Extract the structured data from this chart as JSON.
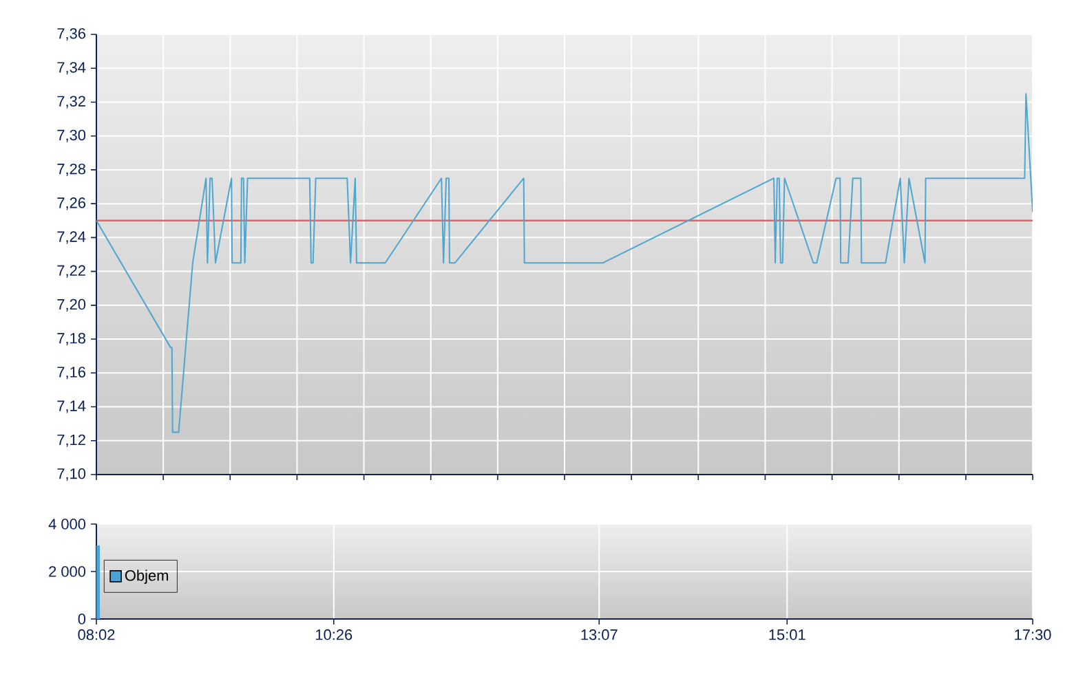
{
  "chart_data": [
    {
      "type": "line",
      "xlim": [
        8.0333,
        17.5
      ],
      "xticks": [
        {
          "value": 8.0333,
          "label": null
        },
        {
          "value": 8.7095,
          "label": null
        },
        {
          "value": 9.3857,
          "label": null
        },
        {
          "value": 10.0619,
          "label": null
        },
        {
          "value": 10.7381,
          "label": null
        },
        {
          "value": 11.4143,
          "label": null
        },
        {
          "value": 12.0905,
          "label": null
        },
        {
          "value": 12.7667,
          "label": null
        },
        {
          "value": 13.4429,
          "label": null
        },
        {
          "value": 14.119,
          "label": null
        },
        {
          "value": 14.7952,
          "label": null
        },
        {
          "value": 15.4714,
          "label": null
        },
        {
          "value": 16.1476,
          "label": null
        },
        {
          "value": 16.8238,
          "label": null
        },
        {
          "value": 17.5,
          "label": null
        }
      ],
      "ylim": [
        7.1,
        7.36
      ],
      "yticks": [
        {
          "value": 7.1,
          "label": "7,10"
        },
        {
          "value": 7.12,
          "label": "7,12"
        },
        {
          "value": 7.14,
          "label": "7,14"
        },
        {
          "value": 7.16,
          "label": "7,16"
        },
        {
          "value": 7.18,
          "label": "7,18"
        },
        {
          "value": 7.2,
          "label": "7,20"
        },
        {
          "value": 7.22,
          "label": "7,22"
        },
        {
          "value": 7.24,
          "label": "7,24"
        },
        {
          "value": 7.26,
          "label": "7,26"
        },
        {
          "value": 7.28,
          "label": "7,28"
        },
        {
          "value": 7.3,
          "label": "7,30"
        },
        {
          "value": 7.32,
          "label": "7,32"
        },
        {
          "value": 7.34,
          "label": "7,34"
        },
        {
          "value": 7.36,
          "label": "7,36"
        }
      ],
      "tick_labels": "y",
      "grid": true,
      "color": "#4ea6d0",
      "x": [
        8.0333,
        8.784,
        8.797,
        8.804,
        8.865,
        9.007,
        9.142,
        9.156,
        9.183,
        9.203,
        9.237,
        9.399,
        9.406,
        9.494,
        9.501,
        9.521,
        9.534,
        9.562,
        10.19,
        10.204,
        10.224,
        10.251,
        10.569,
        10.603,
        10.65,
        10.664,
        10.954,
        11.522,
        11.543,
        11.57,
        11.597,
        11.604,
        11.658,
        12.354,
        12.361,
        13.152,
        14.883,
        14.897,
        14.917,
        14.937,
        14.951,
        14.971,
        14.991,
        15.282,
        15.316,
        15.512,
        15.553,
        15.559,
        15.634,
        15.681,
        15.762,
        15.769,
        16.012,
        16.161,
        16.202,
        16.249,
        16.411,
        16.418,
        17.419,
        17.432,
        17.5
      ],
      "values": [
        7.25,
        7.175,
        7.175,
        7.125,
        7.125,
        7.225,
        7.275,
        7.225,
        7.275,
        7.275,
        7.225,
        7.275,
        7.225,
        7.225,
        7.275,
        7.275,
        7.225,
        7.275,
        7.275,
        7.225,
        7.225,
        7.275,
        7.275,
        7.225,
        7.275,
        7.225,
        7.225,
        7.275,
        7.225,
        7.275,
        7.275,
        7.225,
        7.225,
        7.275,
        7.225,
        7.225,
        7.275,
        7.225,
        7.275,
        7.275,
        7.225,
        7.225,
        7.275,
        7.225,
        7.225,
        7.275,
        7.275,
        7.225,
        7.225,
        7.275,
        7.275,
        7.225,
        7.225,
        7.275,
        7.225,
        7.275,
        7.225,
        7.275,
        7.275,
        7.325,
        7.255
      ],
      "ref_lines": [
        {
          "axis": "y",
          "value": 7.25,
          "color": "#e06464"
        }
      ]
    },
    {
      "type": "bar",
      "xlim": [
        8.0333,
        17.5
      ],
      "xticks": [
        {
          "value": 8.0333,
          "label": "08:02"
        },
        {
          "value": 10.4333,
          "label": "10:26"
        },
        {
          "value": 13.1167,
          "label": "13:07"
        },
        {
          "value": 15.0167,
          "label": "15:01"
        },
        {
          "value": 17.5,
          "label": "17:30"
        }
      ],
      "ylim": [
        0,
        4000
      ],
      "yticks": [
        0,
        {
          "value": 2000,
          "label": "2 000"
        },
        {
          "value": 4000,
          "label": "4 000"
        }
      ],
      "grid": true,
      "legend": "left",
      "series": [
        {
          "name": "Objem",
          "color": "#4aa3d6",
          "x": [
            8.0333
          ],
          "values": [
            3100
          ]
        }
      ]
    }
  ]
}
